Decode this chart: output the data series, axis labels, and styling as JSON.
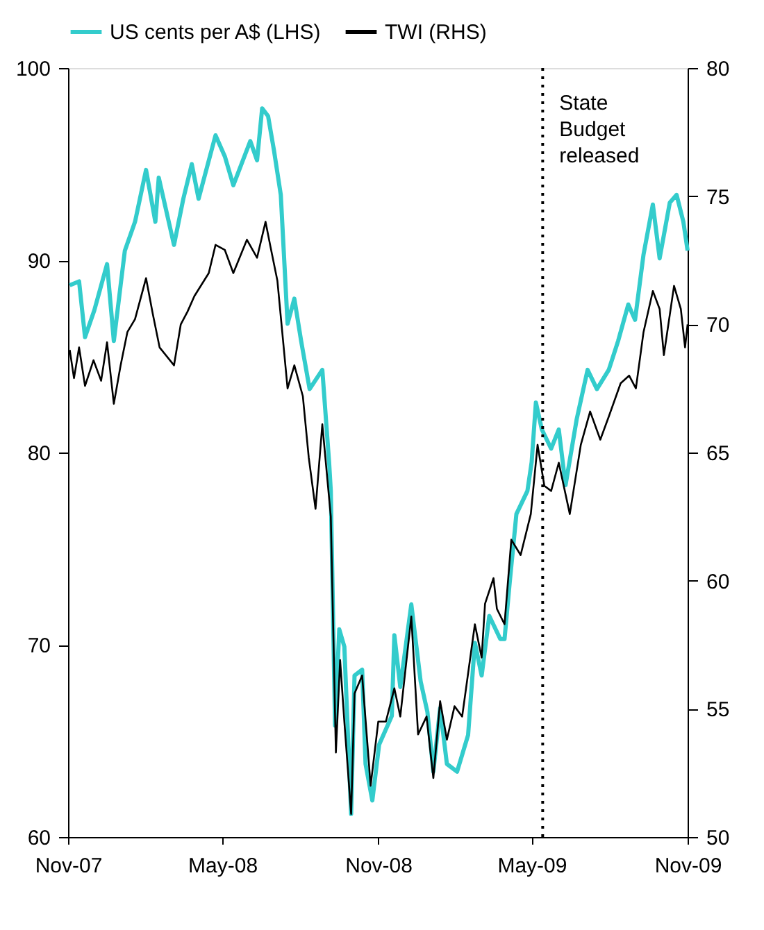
{
  "chart_data": {
    "type": "line",
    "xlim": [
      "2007-11-01",
      "2009-11-01"
    ],
    "xticks": [
      {
        "value": "2007-11-01",
        "label": "Nov-07"
      },
      {
        "value": "2008-05-01",
        "label": "May-08"
      },
      {
        "value": "2008-11-01",
        "label": "Nov-08"
      },
      {
        "value": "2009-05-01",
        "label": "May-09"
      },
      {
        "value": "2009-11-01",
        "label": "Nov-09"
      }
    ],
    "ylim": [
      60,
      100
    ],
    "yticks": [
      60,
      70,
      80,
      90,
      100
    ],
    "y2lim": [
      50,
      80
    ],
    "y2ticks": [
      50,
      55,
      60,
      65,
      70,
      75,
      80
    ],
    "legend": "top",
    "grid": false,
    "line_style": "solid",
    "marker": "none",
    "ref_lines": [
      {
        "axis": "x",
        "value": "2009-05-14",
        "label": "State Budget released",
        "color": "#000000",
        "line_style": "dotted"
      }
    ],
    "series": [
      {
        "name": "US cents per A$ (LHS)",
        "color": "#33cccc",
        "axis": "y",
        "x": [
          "2007-11-03",
          "2007-11-14",
          "2007-11-21",
          "2007-12-02",
          "2007-12-17",
          "2007-12-25",
          "2008-01-02",
          "2008-01-07",
          "2008-01-19",
          "2008-02-01",
          "2008-02-12",
          "2008-02-16",
          "2008-03-05",
          "2008-03-16",
          "2008-03-26",
          "2008-04-03",
          "2008-04-23",
          "2008-05-04",
          "2008-05-14",
          "2008-06-03",
          "2008-06-11",
          "2008-06-17",
          "2008-06-24",
          "2008-07-01",
          "2008-07-09",
          "2008-07-17",
          "2008-07-25",
          "2008-08-02",
          "2008-08-12",
          "2008-08-27",
          "2008-09-04",
          "2008-09-06",
          "2008-09-11",
          "2008-09-16",
          "2008-09-22",
          "2008-09-30",
          "2008-10-04",
          "2008-10-13",
          "2008-10-17",
          "2008-10-25",
          "2008-11-02",
          "2008-11-17",
          "2008-11-20",
          "2008-11-27",
          "2008-12-10",
          "2008-12-21",
          "2008-12-29",
          "2009-01-05",
          "2009-01-13",
          "2009-01-21",
          "2009-02-02",
          "2009-02-15",
          "2009-02-23",
          "2009-03-03",
          "2009-03-12",
          "2009-03-25",
          "2009-03-30",
          "2009-04-05",
          "2009-04-13",
          "2009-04-26",
          "2009-05-01",
          "2009-05-06",
          "2009-05-13",
          "2009-05-24",
          "2009-06-02",
          "2009-06-10",
          "2009-06-23",
          "2009-07-06",
          "2009-07-17",
          "2009-07-31",
          "2009-08-11",
          "2009-08-23",
          "2009-08-31",
          "2009-09-10",
          "2009-09-21",
          "2009-09-29",
          "2009-10-11",
          "2009-10-19",
          "2009-10-27",
          "2009-11-01"
        ],
        "values": [
          88.7,
          88.9,
          86.0,
          87.4,
          89.8,
          85.8,
          88.7,
          90.5,
          92.0,
          94.7,
          92.0,
          94.3,
          90.8,
          93.2,
          95.0,
          93.2,
          96.5,
          95.4,
          93.9,
          96.2,
          95.2,
          97.9,
          97.5,
          95.7,
          93.4,
          86.7,
          88.0,
          85.8,
          83.3,
          84.3,
          79.5,
          78.0,
          65.8,
          70.8,
          69.9,
          61.2,
          68.4,
          68.7,
          63.8,
          61.9,
          64.8,
          66.3,
          70.5,
          67.8,
          72.1,
          68.1,
          66.5,
          63.4,
          66.7,
          63.8,
          63.4,
          65.3,
          70.1,
          68.4,
          71.5,
          70.3,
          70.3,
          73.2,
          76.8,
          78.0,
          79.5,
          82.6,
          81.2,
          80.2,
          81.2,
          78.3,
          81.7,
          84.3,
          83.3,
          84.3,
          85.8,
          87.7,
          86.9,
          90.3,
          92.9,
          90.1,
          93.0,
          93.4,
          92.0,
          90.5
        ]
      },
      {
        "name": "TWI (RHS)",
        "color": "#000000",
        "axis": "y2",
        "x": [
          "2007-11-03",
          "2007-11-08",
          "2007-11-14",
          "2007-11-21",
          "2007-12-01",
          "2007-12-10",
          "2007-12-17",
          "2007-12-25",
          "2008-01-02",
          "2008-01-10",
          "2008-01-19",
          "2008-02-01",
          "2008-02-09",
          "2008-02-17",
          "2008-03-05",
          "2008-03-13",
          "2008-03-21",
          "2008-03-29",
          "2008-04-15",
          "2008-04-23",
          "2008-05-04",
          "2008-05-14",
          "2008-05-30",
          "2008-06-11",
          "2008-06-21",
          "2008-06-27",
          "2008-07-05",
          "2008-07-17",
          "2008-07-25",
          "2008-08-04",
          "2008-08-11",
          "2008-08-19",
          "2008-08-27",
          "2008-09-06",
          "2008-09-12",
          "2008-09-17",
          "2008-09-22",
          "2008-09-30",
          "2008-10-04",
          "2008-10-13",
          "2008-10-23",
          "2008-11-01",
          "2008-11-10",
          "2008-11-20",
          "2008-11-27",
          "2008-12-10",
          "2008-12-18",
          "2008-12-28",
          "2009-01-05",
          "2009-01-13",
          "2009-01-21",
          "2009-01-30",
          "2009-02-08",
          "2009-02-23",
          "2009-03-03",
          "2009-03-07",
          "2009-03-17",
          "2009-03-21",
          "2009-03-30",
          "2009-04-07",
          "2009-04-18",
          "2009-04-30",
          "2009-05-08",
          "2009-05-16",
          "2009-05-24",
          "2009-06-02",
          "2009-06-15",
          "2009-06-28",
          "2009-07-09",
          "2009-07-21",
          "2009-07-31",
          "2009-08-14",
          "2009-08-24",
          "2009-09-01",
          "2009-09-10",
          "2009-09-21",
          "2009-09-29",
          "2009-10-04",
          "2009-10-16",
          "2009-10-24",
          "2009-10-29",
          "2009-11-01"
        ],
        "values": [
          69.0,
          67.9,
          69.1,
          67.6,
          68.6,
          67.8,
          69.3,
          66.9,
          68.4,
          69.7,
          70.2,
          71.8,
          70.4,
          69.1,
          68.4,
          70.0,
          70.5,
          71.1,
          72.0,
          73.1,
          72.9,
          72.0,
          73.3,
          72.6,
          74.0,
          73.0,
          71.7,
          67.5,
          68.4,
          67.2,
          64.8,
          62.8,
          66.1,
          62.5,
          53.3,
          56.9,
          54.5,
          50.9,
          55.6,
          56.3,
          52.0,
          54.5,
          54.5,
          55.8,
          54.7,
          58.6,
          54.0,
          54.7,
          52.3,
          55.3,
          53.8,
          55.1,
          54.7,
          58.3,
          57.0,
          59.1,
          60.1,
          58.9,
          58.3,
          61.6,
          61.0,
          62.6,
          65.3,
          63.7,
          63.5,
          64.6,
          62.6,
          65.3,
          66.6,
          65.5,
          66.4,
          67.7,
          68.0,
          67.5,
          69.7,
          71.3,
          70.6,
          68.8,
          71.5,
          70.6,
          69.1,
          70.0
        ]
      }
    ]
  }
}
